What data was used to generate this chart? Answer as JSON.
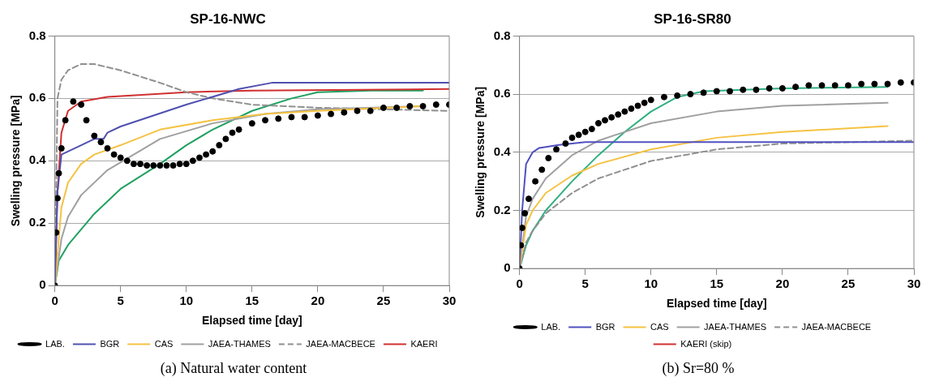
{
  "chart_data": [
    {
      "type": "line",
      "title": "SP-16-NWC",
      "xlabel": "Elapsed time [day]",
      "ylabel": "Swelling pressure [MPa]",
      "xlim": [
        0,
        30
      ],
      "xticks": [
        0,
        5,
        10,
        15,
        20,
        25,
        30
      ],
      "ylim": [
        0,
        0.8
      ],
      "yticks": [
        0,
        0.2,
        0.4,
        0.6,
        0.8
      ],
      "grid": "y",
      "legend": "bottom",
      "annotations": [
        "(a) Natural water content"
      ],
      "series": [
        {
          "name": "LAB.",
          "type": "scatter",
          "marker": "circle",
          "color": "#000000",
          "x": [
            0,
            0.1,
            0.2,
            0.3,
            0.5,
            0.8,
            1.4,
            2,
            2.4,
            3,
            3.5,
            4,
            4.5,
            5,
            5.5,
            6,
            6.5,
            7,
            7.5,
            8,
            8.5,
            9,
            9.5,
            10,
            10.5,
            11,
            11.5,
            12,
            12.5,
            13,
            13.5,
            14,
            15,
            16,
            17,
            18,
            19,
            20,
            21,
            22,
            23,
            24,
            25,
            26,
            27,
            28,
            29,
            30
          ],
          "values": [
            0,
            0.17,
            0.28,
            0.36,
            0.44,
            0.53,
            0.59,
            0.58,
            0.53,
            0.48,
            0.46,
            0.44,
            0.42,
            0.41,
            0.4,
            0.39,
            0.39,
            0.385,
            0.385,
            0.385,
            0.385,
            0.385,
            0.39,
            0.39,
            0.4,
            0.41,
            0.42,
            0.43,
            0.45,
            0.47,
            0.49,
            0.5,
            0.52,
            0.53,
            0.535,
            0.54,
            0.54,
            0.545,
            0.55,
            0.555,
            0.56,
            0.56,
            0.57,
            0.57,
            0.575,
            0.575,
            0.58,
            0.58
          ]
        },
        {
          "name": "BGR",
          "color": "#5050b0",
          "x": [
            0,
            0.2,
            0.5,
            2,
            3,
            3.7,
            4,
            5,
            10,
            14,
            16.5,
            30
          ],
          "values": [
            0,
            0.3,
            0.42,
            0.45,
            0.47,
            0.47,
            0.49,
            0.51,
            0.58,
            0.63,
            0.65,
            0.65
          ]
        },
        {
          "name": "CAS",
          "color": "#f5c242",
          "x": [
            0,
            0.5,
            1,
            2,
            3,
            5,
            8,
            12,
            16,
            20,
            28
          ],
          "values": [
            0,
            0.25,
            0.33,
            0.39,
            0.42,
            0.45,
            0.5,
            0.53,
            0.55,
            0.56,
            0.575
          ]
        },
        {
          "name": "JAEA-THAMES",
          "color": "#a0a0a0",
          "x": [
            0,
            0.5,
            1,
            2,
            4,
            6,
            8,
            12,
            16,
            20,
            28
          ],
          "values": [
            0,
            0.15,
            0.22,
            0.29,
            0.37,
            0.42,
            0.47,
            0.52,
            0.55,
            0.565,
            0.575
          ]
        },
        {
          "name": "JAEA-MACBECE",
          "color": "#909090",
          "line_style": "dashed",
          "x": [
            0,
            0.2,
            0.5,
            1,
            2,
            3,
            5,
            8,
            10,
            12,
            15,
            20,
            25,
            30
          ],
          "values": [
            0,
            0.6,
            0.66,
            0.69,
            0.71,
            0.71,
            0.69,
            0.65,
            0.62,
            0.6,
            0.58,
            0.57,
            0.565,
            0.56
          ]
        },
        {
          "name": "KAERI",
          "color": "#d03030",
          "x": [
            0,
            0.2,
            0.5,
            1,
            2,
            4,
            10,
            15,
            30
          ],
          "values": [
            0,
            0.3,
            0.49,
            0.56,
            0.59,
            0.605,
            0.62,
            0.625,
            0.63
          ]
        },
        {
          "color": "#20a060",
          "x": [
            0,
            0.3,
            1,
            3,
            5,
            8,
            10,
            12,
            15,
            18,
            20,
            24,
            28
          ],
          "values": [
            0,
            0.08,
            0.13,
            0.23,
            0.31,
            0.39,
            0.45,
            0.5,
            0.56,
            0.6,
            0.62,
            0.625,
            0.625
          ]
        }
      ]
    },
    {
      "type": "line",
      "title": "SP-16-SR80",
      "xlabel": "Elapsed time [day]",
      "ylabel": "Swelling pressure [MPa]",
      "xlim": [
        0,
        30
      ],
      "xticks": [
        0,
        5,
        10,
        15,
        20,
        25,
        30
      ],
      "ylim": [
        0,
        0.8
      ],
      "yticks": [
        0,
        0.2,
        0.4,
        0.6,
        0.8
      ],
      "grid": "y",
      "legend": "bottom",
      "annotations": [
        "(b) Sr=80 %"
      ],
      "series": [
        {
          "name": "LAB.",
          "type": "scatter",
          "marker": "circle",
          "color": "#000000",
          "x": [
            0,
            0.1,
            0.2,
            0.4,
            0.7,
            1.2,
            1.7,
            2.2,
            2.8,
            3.5,
            4,
            4.5,
            5,
            5.5,
            6,
            6.5,
            7,
            7.5,
            8,
            8.5,
            9,
            9.5,
            10,
            11,
            12,
            13,
            14,
            15,
            16,
            17,
            18,
            19,
            20,
            21,
            22,
            23,
            24,
            25,
            26,
            27,
            28,
            29,
            30
          ],
          "values": [
            0,
            0.08,
            0.14,
            0.19,
            0.24,
            0.3,
            0.34,
            0.38,
            0.41,
            0.43,
            0.45,
            0.46,
            0.47,
            0.48,
            0.5,
            0.51,
            0.52,
            0.53,
            0.54,
            0.55,
            0.56,
            0.57,
            0.58,
            0.59,
            0.595,
            0.6,
            0.605,
            0.61,
            0.61,
            0.615,
            0.615,
            0.62,
            0.62,
            0.625,
            0.63,
            0.63,
            0.63,
            0.63,
            0.635,
            0.635,
            0.635,
            0.64,
            0.64
          ]
        },
        {
          "name": "BGR",
          "color": "#5050c0",
          "x": [
            0,
            0.2,
            0.5,
            1,
            1.5,
            3,
            5,
            30
          ],
          "values": [
            0,
            0.2,
            0.36,
            0.4,
            0.415,
            0.425,
            0.435,
            0.435
          ]
        },
        {
          "name": "CAS",
          "color": "#f5c242",
          "x": [
            0,
            0.5,
            1,
            2,
            4,
            6,
            10,
            15,
            20,
            28
          ],
          "values": [
            0,
            0.15,
            0.2,
            0.26,
            0.32,
            0.36,
            0.41,
            0.45,
            0.47,
            0.49
          ]
        },
        {
          "name": "JAEA-THAMES",
          "color": "#a0a0a0",
          "x": [
            0,
            0.5,
            1,
            2,
            4,
            6,
            10,
            15,
            20,
            28
          ],
          "values": [
            0,
            0.18,
            0.24,
            0.31,
            0.39,
            0.44,
            0.5,
            0.54,
            0.56,
            0.57
          ]
        },
        {
          "name": "JAEA-MACBECE",
          "color": "#909090",
          "line_style": "dashed",
          "x": [
            0,
            0.5,
            1,
            2,
            4,
            6,
            10,
            15,
            20,
            25,
            30
          ],
          "values": [
            0,
            0.09,
            0.13,
            0.19,
            0.26,
            0.31,
            0.37,
            0.41,
            0.43,
            0.435,
            0.44
          ]
        },
        {
          "name": "KAERI (skip)",
          "color": "#d03030"
        },
        {
          "color": "#30b080",
          "x": [
            0,
            0.5,
            1,
            2,
            4,
            6,
            8,
            10,
            12,
            14,
            20,
            28
          ],
          "values": [
            0,
            0.08,
            0.13,
            0.2,
            0.3,
            0.39,
            0.47,
            0.54,
            0.59,
            0.61,
            0.62,
            0.625
          ]
        }
      ]
    }
  ]
}
